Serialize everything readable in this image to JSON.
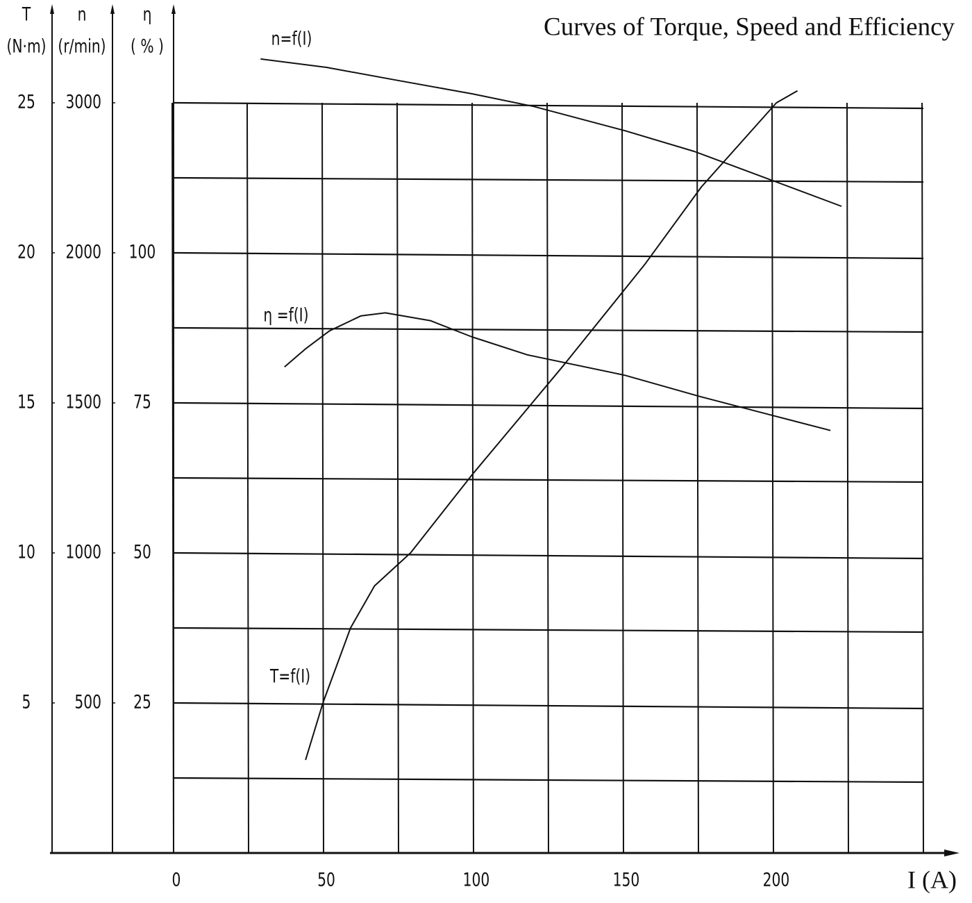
{
  "chart_data": {
    "type": "line",
    "title": "Curves of Torque, Speed and Efficiency",
    "x_label": "I (A)",
    "xlim": [
      0,
      250
    ],
    "xticks": [
      0,
      50,
      100,
      150,
      200
    ],
    "xminor": [
      25,
      75,
      125,
      175,
      225,
      250
    ],
    "color": "#111111",
    "grid": true,
    "y_axes": [
      {
        "symbol": "T",
        "unit": "(N·m)",
        "ylim": [
          0,
          28
        ],
        "yticks": [
          5,
          10,
          15,
          20,
          25
        ],
        "yminor": [
          2.5,
          7.5,
          12.5,
          17.5,
          22.5
        ]
      },
      {
        "symbol": "n",
        "unit": "(r/min)",
        "ylim": [
          0,
          3300
        ],
        "yticks": [
          500,
          1000,
          1500,
          2000,
          3000
        ]
      },
      {
        "symbol": "η",
        "unit": "( % )",
        "ylim": [
          0,
          140
        ],
        "yticks": [
          25,
          50,
          75,
          100
        ]
      }
    ],
    "series": [
      {
        "name": "n=f(I)",
        "axis": 1,
        "x": [
          29,
          51,
          74,
          99.5,
          120,
          150.5,
          173.6,
          201,
          222.7
        ],
        "values": [
          3146,
          3118,
          3076,
          3030,
          2976,
          2814,
          2676,
          2472,
          2310
        ]
      },
      {
        "name": "η =f(I)",
        "axis": 2,
        "x": [
          37,
          44,
          52,
          62.5,
          70.6,
          85.6,
          99.5,
          118,
          150.5,
          176,
          199,
          219
        ],
        "values": [
          81,
          84,
          87,
          89.5,
          90,
          88.7,
          86,
          83,
          79.6,
          76,
          73,
          70.4
        ]
      },
      {
        "name": "T=f(I)",
        "axis": 0,
        "x": [
          44,
          49.8,
          59,
          67,
          79,
          99.5,
          129.6,
          157,
          176,
          201,
          208
        ],
        "values": [
          3.1,
          5.0,
          7.5,
          8.9,
          10,
          12.6,
          16.2,
          19.6,
          22.2,
          25,
          25.4
        ]
      }
    ]
  }
}
